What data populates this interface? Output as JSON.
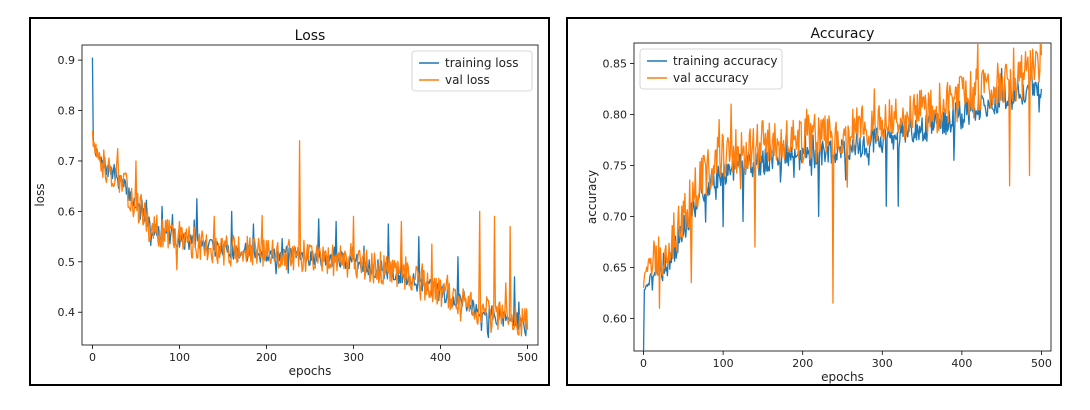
{
  "colors": {
    "training": "#1f77b4",
    "val": "#ff7f0e"
  },
  "chart_data": [
    {
      "type": "line",
      "title": "Loss",
      "xlabel": "epochs",
      "ylabel": "loss",
      "xlim": [
        -12,
        512
      ],
      "ylim": [
        0.335,
        0.93
      ],
      "xticks": [
        0,
        100,
        200,
        300,
        400,
        500
      ],
      "yticks": [
        0.4,
        0.5,
        0.6,
        0.7,
        0.8,
        0.9
      ],
      "ytick_labels": [
        "0.4",
        "0.5",
        "0.6",
        "0.7",
        "0.8",
        "0.9"
      ],
      "legend_position": "top-right",
      "grid": false,
      "anchors": [
        [
          0,
          0.74
        ],
        [
          10,
          0.695
        ],
        [
          25,
          0.675
        ],
        [
          40,
          0.64
        ],
        [
          55,
          0.6
        ],
        [
          70,
          0.565
        ],
        [
          100,
          0.545
        ],
        [
          150,
          0.525
        ],
        [
          200,
          0.515
        ],
        [
          250,
          0.51
        ],
        [
          300,
          0.5
        ],
        [
          350,
          0.475
        ],
        [
          400,
          0.44
        ],
        [
          450,
          0.4
        ],
        [
          500,
          0.375
        ]
      ],
      "series": [
        {
          "name": "training loss",
          "color": "#1f77b4",
          "first_value": 0.905,
          "noise_amplitude": 0.018,
          "seed": 7,
          "spikes": [
            [
              80,
              0.61
            ],
            [
              120,
              0.625
            ],
            [
              160,
              0.6
            ],
            [
              185,
              0.575
            ],
            [
              260,
              0.585
            ],
            [
              280,
              0.58
            ],
            [
              340,
              0.575
            ],
            [
              355,
              0.56
            ],
            [
              375,
              0.55
            ],
            [
              420,
              0.51
            ],
            [
              455,
              0.35
            ],
            [
              485,
              0.47
            ],
            [
              490,
              0.42
            ],
            [
              497,
              0.36
            ]
          ]
        },
        {
          "name": "val loss",
          "color": "#ff7f0e",
          "first_value": 0.76,
          "noise_amplitude": 0.032,
          "seed": 13,
          "spikes": [
            [
              50,
              0.7
            ],
            [
              65,
              0.54
            ],
            [
              100,
              0.58
            ],
            [
              140,
              0.59
            ],
            [
              238,
              0.74
            ],
            [
              300,
              0.59
            ],
            [
              355,
              0.58
            ],
            [
              390,
              0.535
            ],
            [
              445,
              0.6
            ],
            [
              458,
              0.36
            ],
            [
              462,
              0.59
            ],
            [
              480,
              0.57
            ],
            [
              500,
              0.365
            ]
          ]
        }
      ]
    },
    {
      "type": "line",
      "title": "Accuracy",
      "xlabel": "epochs",
      "ylabel": "accuracy",
      "xlim": [
        -12,
        512
      ],
      "ylim": [
        0.568,
        0.87
      ],
      "xticks": [
        0,
        100,
        200,
        300,
        400,
        500
      ],
      "yticks": [
        0.6,
        0.65,
        0.7,
        0.75,
        0.8,
        0.85
      ],
      "ytick_labels": [
        "0.60",
        "0.65",
        "0.70",
        "0.75",
        "0.80",
        "0.85"
      ],
      "legend_position": "top-left",
      "grid": false,
      "anchors": [
        [
          0,
          0.63
        ],
        [
          10,
          0.64
        ],
        [
          30,
          0.655
        ],
        [
          50,
          0.685
        ],
        [
          70,
          0.72
        ],
        [
          100,
          0.745
        ],
        [
          150,
          0.755
        ],
        [
          200,
          0.76
        ],
        [
          250,
          0.765
        ],
        [
          300,
          0.775
        ],
        [
          350,
          0.785
        ],
        [
          400,
          0.8
        ],
        [
          450,
          0.815
        ],
        [
          500,
          0.83
        ]
      ],
      "series": [
        {
          "name": "training accuracy",
          "color": "#1f77b4",
          "first_value": 0.568,
          "noise_amplitude": 0.014,
          "seed": 21,
          "spikes": [
            [
              100,
              0.69
            ],
            [
              125,
              0.695
            ],
            [
              220,
              0.7
            ],
            [
              305,
              0.71
            ],
            [
              320,
              0.71
            ],
            [
              390,
              0.755
            ],
            [
              450,
              0.845
            ],
            [
              500,
              0.825
            ]
          ]
        },
        {
          "name": "val accuracy",
          "color": "#ff7f0e",
          "first_value": 0.63,
          "noise_amplitude": 0.024,
          "seed": 33,
          "offset": 0.015,
          "spikes": [
            [
              20,
              0.61
            ],
            [
              60,
              0.635
            ],
            [
              110,
              0.81
            ],
            [
              140,
              0.67
            ],
            [
              205,
              0.805
            ],
            [
              238,
              0.615
            ],
            [
              290,
              0.825
            ],
            [
              430,
              0.835
            ],
            [
              460,
              0.73
            ],
            [
              465,
              0.865
            ],
            [
              485,
              0.74
            ],
            [
              500,
              0.858
            ]
          ]
        }
      ]
    }
  ]
}
